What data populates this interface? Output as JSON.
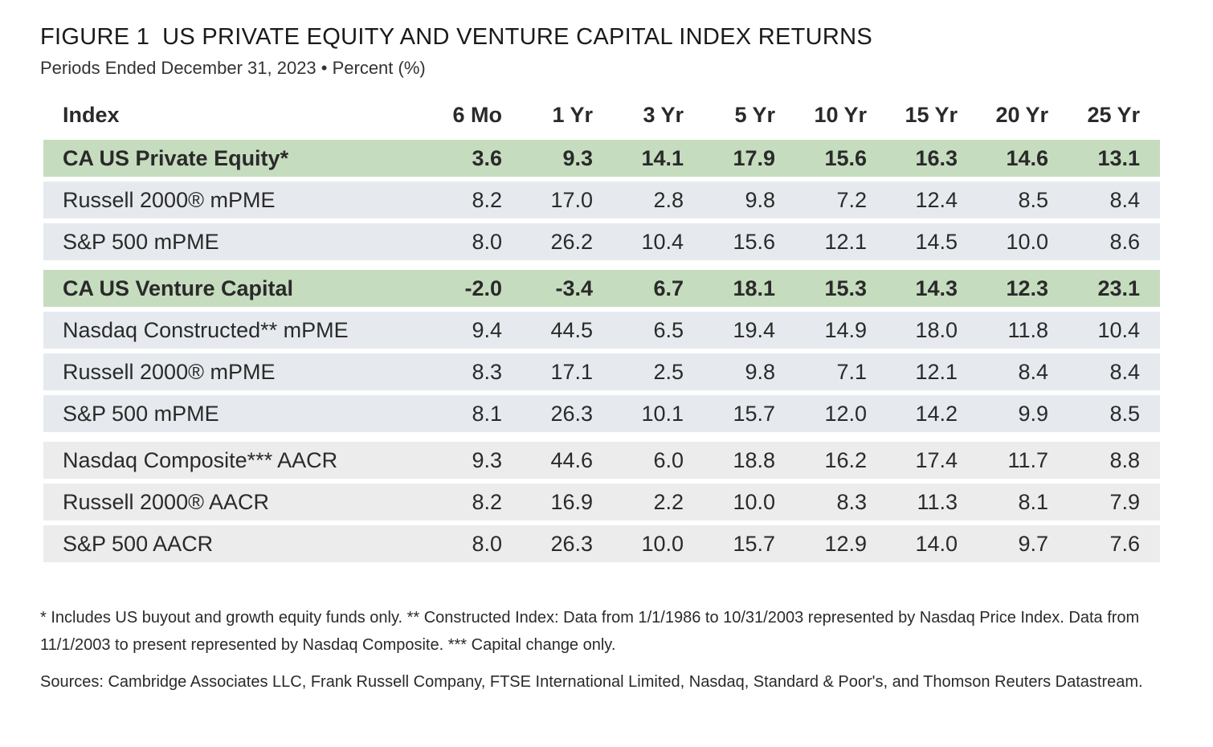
{
  "figure": {
    "label": "FIGURE 1",
    "title": "US PRIVATE EQUITY AND VENTURE CAPITAL INDEX RETURNS",
    "subtitle": "Periods Ended December 31, 2023 • Percent (%)"
  },
  "chart_data": {
    "type": "table",
    "title": "US PRIVATE EQUITY AND VENTURE CAPITAL INDEX RETURNS",
    "subtitle": "Periods Ended December 31, 2023 • Percent (%)",
    "columns": [
      "Index",
      "6 Mo",
      "1 Yr",
      "3 Yr",
      "5 Yr",
      "10 Yr",
      "15 Yr",
      "20 Yr",
      "25 Yr"
    ],
    "rows": [
      {
        "name": "CA US Private Equity*",
        "values": [
          "3.6",
          "9.3",
          "14.1",
          "17.9",
          "15.6",
          "16.3",
          "14.6",
          "13.1"
        ],
        "style": "highlight"
      },
      {
        "name": "Russell 2000® mPME",
        "values": [
          "8.2",
          "17.0",
          "2.8",
          "9.8",
          "7.2",
          "12.4",
          "8.5",
          "8.4"
        ],
        "style": "shade"
      },
      {
        "name": "S&P 500 mPME",
        "values": [
          "8.0",
          "26.2",
          "10.4",
          "15.6",
          "12.1",
          "14.5",
          "10.0",
          "8.6"
        ],
        "style": "shade"
      },
      {
        "name": "CA US Venture Capital",
        "values": [
          "-2.0",
          "-3.4",
          "6.7",
          "18.1",
          "15.3",
          "14.3",
          "12.3",
          "23.1"
        ],
        "style": "highlight"
      },
      {
        "name": "Nasdaq Constructed** mPME",
        "values": [
          "9.4",
          "44.5",
          "6.5",
          "19.4",
          "14.9",
          "18.0",
          "11.8",
          "10.4"
        ],
        "style": "shade"
      },
      {
        "name": "Russell 2000® mPME",
        "values": [
          "8.3",
          "17.1",
          "2.5",
          "9.8",
          "7.1",
          "12.1",
          "8.4",
          "8.4"
        ],
        "style": "shade"
      },
      {
        "name": "S&P 500 mPME",
        "values": [
          "8.1",
          "26.3",
          "10.1",
          "15.7",
          "12.0",
          "14.2",
          "9.9",
          "8.5"
        ],
        "style": "shade"
      },
      {
        "name": "Nasdaq Composite*** AACR",
        "values": [
          "9.3",
          "44.6",
          "6.0",
          "18.8",
          "16.2",
          "17.4",
          "11.7",
          "8.8"
        ],
        "style": "gray"
      },
      {
        "name": "Russell 2000® AACR",
        "values": [
          "8.2",
          "16.9",
          "2.2",
          "10.0",
          "8.3",
          "11.3",
          "8.1",
          "7.9"
        ],
        "style": "gray"
      },
      {
        "name": "S&P 500 AACR",
        "values": [
          "8.0",
          "26.3",
          "10.0",
          "15.7",
          "12.9",
          "14.0",
          "9.7",
          "7.6"
        ],
        "style": "gray"
      }
    ]
  },
  "notes": {
    "footnote": "* Includes US buyout and growth equity funds only. ** Constructed Index: Data from 1/1/1986 to 10/31/2003 represented by Nasdaq Price Index. Data from 11/1/2003 to present represented by Nasdaq Composite. *** Capital change only.",
    "sources": "Sources: Cambridge Associates LLC, Frank Russell Company, FTSE International Limited, Nasdaq, Standard & Poor's, and Thomson Reuters Datastream."
  },
  "colors": {
    "highlight": "#c6dcbf",
    "shade": "#e6eaee",
    "gray": "#ececec"
  }
}
